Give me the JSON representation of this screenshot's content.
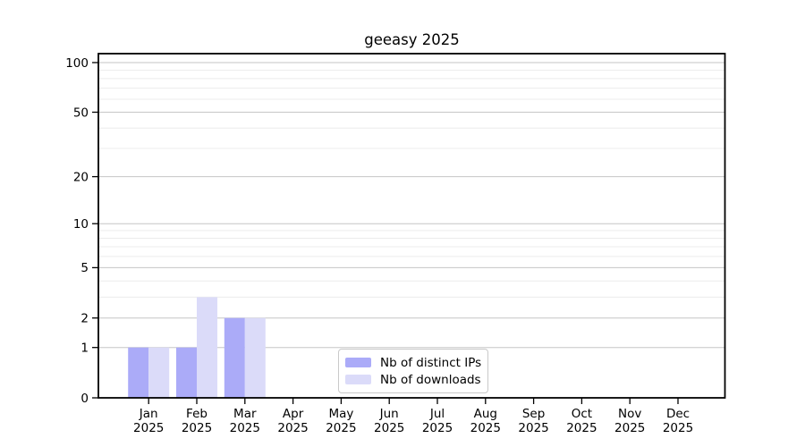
{
  "chart_data": {
    "type": "bar",
    "title": "geeasy 2025",
    "x_tick_months": [
      "Jan",
      "Feb",
      "Mar",
      "Apr",
      "May",
      "Jun",
      "Jul",
      "Aug",
      "Sep",
      "Oct",
      "Nov",
      "Dec"
    ],
    "x_tick_year": "2025",
    "y_ticks": [
      0,
      1,
      2,
      5,
      10,
      20,
      50,
      100
    ],
    "y_minor_gridlines": [
      3,
      4,
      6,
      7,
      8,
      9,
      30,
      40,
      60,
      70,
      80,
      90
    ],
    "y_scale": "log1p",
    "ylim": [
      0,
      100
    ],
    "grid": "horizontal",
    "legend_position": "inside-bottom-center",
    "series": [
      {
        "name": "Nb of distinct IPs",
        "key": "distinct-ips",
        "color": "#ababf8",
        "values": [
          1,
          1,
          2,
          0,
          0,
          0,
          0,
          0,
          0,
          0,
          0,
          0
        ]
      },
      {
        "name": "Nb of downloads",
        "key": "downloads",
        "color": "#dbdbf9",
        "values": [
          1,
          3,
          2,
          0,
          0,
          0,
          0,
          0,
          0,
          0,
          0,
          0
        ]
      }
    ]
  }
}
